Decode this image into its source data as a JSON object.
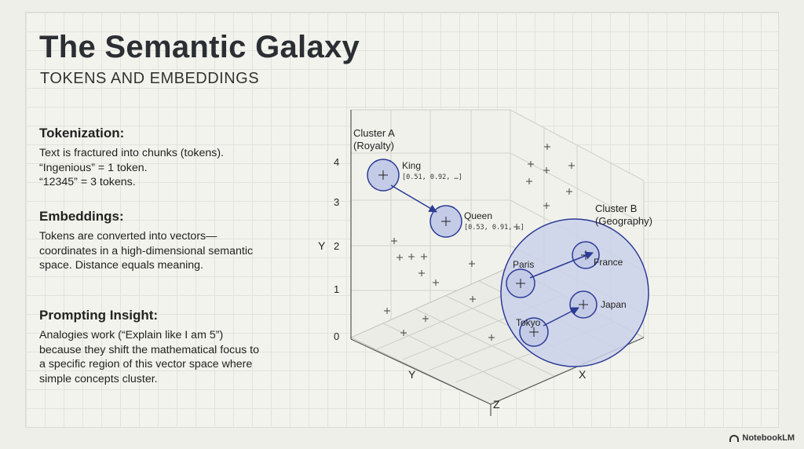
{
  "title": "The Semantic Galaxy",
  "subtitle": "TOKENS AND EMBEDDINGS",
  "sections": [
    {
      "heading": "Tokenization:",
      "lines": [
        "Text is fractured into chunks (tokens).",
        "“Ingenious” = 1 token.",
        "“12345” = 3 tokens."
      ]
    },
    {
      "heading": "Embeddings:",
      "body": "Tokens are converted into vectors—coordinates in a high-dimensional semantic space. Distance equals meaning."
    },
    {
      "heading": "Prompting Insight:",
      "body": "Analogies work (“Explain like I am 5”) because they shift the mathematical focus to a specific region of this vector space where simple concepts cluster."
    }
  ],
  "diagram": {
    "axis_labels": {
      "y": "Y",
      "y_floor": "Y",
      "x": "X",
      "z": "Z"
    },
    "y_ticks": [
      "4",
      "3",
      "2",
      "1",
      "0"
    ],
    "cluster_a": {
      "title": "Cluster A",
      "subtitle": "(Royalty)"
    },
    "cluster_b": {
      "title": "Cluster B",
      "subtitle": "(Geography)"
    },
    "tokens": {
      "king": {
        "label": "King",
        "vector": "[0.51, 0.92, …]"
      },
      "queen": {
        "label": "Queen",
        "vector": "[0.53, 0.91, …]"
      },
      "paris": {
        "label": "Paris"
      },
      "france": {
        "label": "France"
      },
      "tokyo": {
        "label": "Tokyo"
      },
      "japan": {
        "label": "Japan"
      }
    },
    "colors": {
      "node_fill": "#c3cbe6",
      "node_stroke": "#2b3b96",
      "arrow": "#2b3b96",
      "cluster_fill": "#cbd2ea"
    }
  },
  "footer": {
    "brand": "NotebookLM"
  }
}
